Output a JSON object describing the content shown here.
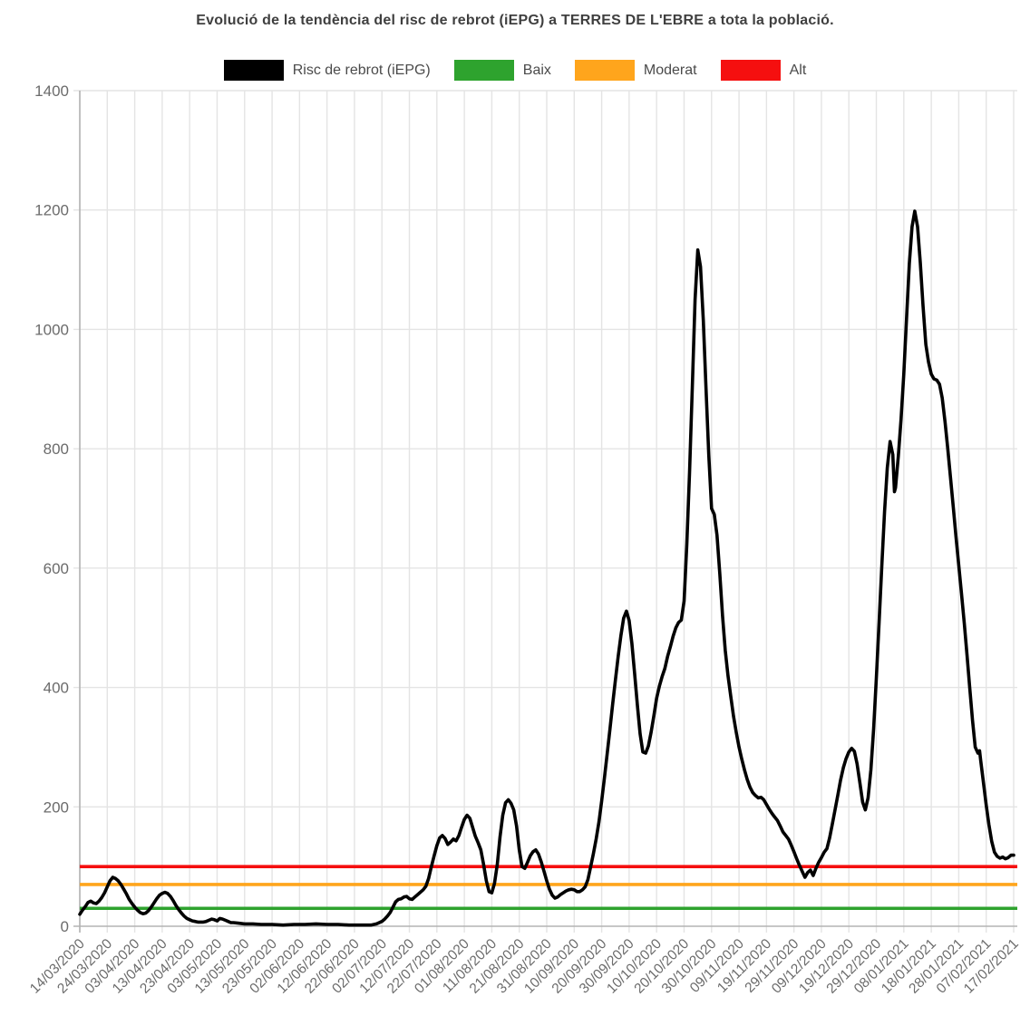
{
  "chart_data": {
    "type": "line",
    "title": "Evolució de la tendència del risc de rebrot (iEPG) a TERRES DE L'EBRE a tota la població.",
    "legend": [
      {
        "label": "Risc de rebrot (iEPG)",
        "color": "#000000"
      },
      {
        "label": "Baix",
        "color": "#2ea32e"
      },
      {
        "label": "Moderat",
        "color": "#ffa51c"
      },
      {
        "label": "Alt",
        "color": "#f50f0f"
      }
    ],
    "colors": {
      "series": "#000000",
      "grid": "#e4e4e4",
      "axis": "#b3b3b3",
      "tick_text": "#6b6b6b"
    },
    "y_axis": {
      "min": 0,
      "max": 1400,
      "ticks": [
        0,
        200,
        400,
        600,
        800,
        1000,
        1200,
        1400
      ],
      "grid": true
    },
    "x_axis": {
      "tick_interval_days": 10,
      "tick_labels": [
        "14/03/2020",
        "24/03/2020",
        "03/04/2020",
        "13/04/2020",
        "23/04/2020",
        "03/05/2020",
        "13/05/2020",
        "23/05/2020",
        "02/06/2020",
        "12/06/2020",
        "22/06/2020",
        "02/07/2020",
        "12/07/2020",
        "22/07/2020",
        "01/08/2020",
        "11/08/2020",
        "21/08/2020",
        "31/08/2020",
        "10/09/2020",
        "20/09/2020",
        "30/09/2020",
        "10/10/2020",
        "20/10/2020",
        "30/10/2020",
        "09/11/2020",
        "19/11/2020",
        "29/11/2020",
        "09/12/2020",
        "19/12/2020",
        "29/12/2020",
        "08/01/2021",
        "18/01/2021",
        "28/01/2021",
        "07/02/2021",
        "17/02/2021"
      ],
      "grid": true
    },
    "thresholds": [
      {
        "name": "Baix",
        "value": 30,
        "color": "#2ea32e"
      },
      {
        "name": "Moderat",
        "value": 70,
        "color": "#ffa51c"
      },
      {
        "name": "Alt",
        "value": 100,
        "color": "#f50f0f"
      }
    ],
    "series": [
      {
        "name": "Risc de rebrot (iEPG)",
        "color": "#000000",
        "x_unit": "days_since_first_tick",
        "points": [
          [
            0,
            20
          ],
          [
            1,
            27
          ],
          [
            2,
            33
          ],
          [
            3,
            40
          ],
          [
            4,
            42
          ],
          [
            5,
            39
          ],
          [
            6,
            38
          ],
          [
            7,
            42
          ],
          [
            8,
            48
          ],
          [
            9,
            56
          ],
          [
            10,
            66
          ],
          [
            11,
            76
          ],
          [
            12,
            82
          ],
          [
            13,
            80
          ],
          [
            14,
            76
          ],
          [
            15,
            70
          ],
          [
            16,
            62
          ],
          [
            17,
            54
          ],
          [
            18,
            45
          ],
          [
            19,
            38
          ],
          [
            20,
            32
          ],
          [
            21,
            27
          ],
          [
            22,
            23
          ],
          [
            23,
            21
          ],
          [
            24,
            22
          ],
          [
            25,
            26
          ],
          [
            26,
            32
          ],
          [
            27,
            39
          ],
          [
            28,
            46
          ],
          [
            29,
            52
          ],
          [
            30,
            55
          ],
          [
            31,
            57
          ],
          [
            32,
            55
          ],
          [
            33,
            50
          ],
          [
            34,
            43
          ],
          [
            35,
            35
          ],
          [
            36,
            28
          ],
          [
            37,
            22
          ],
          [
            38,
            17
          ],
          [
            39,
            13
          ],
          [
            40,
            11
          ],
          [
            41,
            9
          ],
          [
            42,
            8
          ],
          [
            43,
            7
          ],
          [
            44,
            7
          ],
          [
            45,
            7
          ],
          [
            46,
            8
          ],
          [
            47,
            10
          ],
          [
            48,
            12
          ],
          [
            49,
            11
          ],
          [
            50,
            9
          ],
          [
            51,
            13
          ],
          [
            52,
            12
          ],
          [
            53,
            10
          ],
          [
            54,
            8
          ],
          [
            55,
            6
          ],
          [
            56,
            6
          ],
          [
            58,
            5
          ],
          [
            60,
            4
          ],
          [
            63,
            4
          ],
          [
            66,
            3
          ],
          [
            70,
            3
          ],
          [
            74,
            2
          ],
          [
            78,
            3
          ],
          [
            82,
            3
          ],
          [
            86,
            4
          ],
          [
            90,
            3
          ],
          [
            94,
            3
          ],
          [
            98,
            2
          ],
          [
            101,
            2
          ],
          [
            104,
            2
          ],
          [
            106,
            2
          ],
          [
            108,
            4
          ],
          [
            110,
            8
          ],
          [
            111,
            12
          ],
          [
            112,
            17
          ],
          [
            113,
            23
          ],
          [
            114,
            32
          ],
          [
            115,
            41
          ],
          [
            116,
            45
          ],
          [
            117,
            46
          ],
          [
            118,
            49
          ],
          [
            119,
            50
          ],
          [
            120,
            46
          ],
          [
            121,
            45
          ],
          [
            122,
            49
          ],
          [
            123,
            53
          ],
          [
            124,
            57
          ],
          [
            125,
            61
          ],
          [
            126,
            67
          ],
          [
            127,
            80
          ],
          [
            128,
            100
          ],
          [
            129,
            118
          ],
          [
            130,
            135
          ],
          [
            131,
            148
          ],
          [
            132,
            152
          ],
          [
            133,
            147
          ],
          [
            134,
            137
          ],
          [
            135,
            141
          ],
          [
            136,
            146
          ],
          [
            137,
            143
          ],
          [
            138,
            152
          ],
          [
            139,
            166
          ],
          [
            140,
            179
          ],
          [
            141,
            186
          ],
          [
            142,
            181
          ],
          [
            143,
            166
          ],
          [
            144,
            151
          ],
          [
            145,
            140
          ],
          [
            146,
            128
          ],
          [
            147,
            104
          ],
          [
            148,
            76
          ],
          [
            149,
            58
          ],
          [
            150,
            56
          ],
          [
            151,
            72
          ],
          [
            152,
            104
          ],
          [
            153,
            150
          ],
          [
            154,
            186
          ],
          [
            155,
            207
          ],
          [
            156,
            212
          ],
          [
            157,
            206
          ],
          [
            158,
            195
          ],
          [
            159,
            168
          ],
          [
            160,
            128
          ],
          [
            161,
            100
          ],
          [
            162,
            97
          ],
          [
            163,
            107
          ],
          [
            164,
            118
          ],
          [
            165,
            125
          ],
          [
            166,
            128
          ],
          [
            167,
            121
          ],
          [
            168,
            108
          ],
          [
            169,
            92
          ],
          [
            170,
            76
          ],
          [
            171,
            62
          ],
          [
            172,
            52
          ],
          [
            173,
            47
          ],
          [
            174,
            49
          ],
          [
            175,
            53
          ],
          [
            176,
            56
          ],
          [
            177,
            59
          ],
          [
            178,
            61
          ],
          [
            179,
            62
          ],
          [
            180,
            61
          ],
          [
            181,
            58
          ],
          [
            182,
            58
          ],
          [
            183,
            61
          ],
          [
            184,
            66
          ],
          [
            185,
            78
          ],
          [
            186,
            100
          ],
          [
            187,
            122
          ],
          [
            188,
            146
          ],
          [
            189,
            175
          ],
          [
            190,
            210
          ],
          [
            191,
            248
          ],
          [
            192,
            288
          ],
          [
            193,
            330
          ],
          [
            194,
            372
          ],
          [
            195,
            412
          ],
          [
            196,
            452
          ],
          [
            197,
            487
          ],
          [
            198,
            516
          ],
          [
            199,
            528
          ],
          [
            200,
            512
          ],
          [
            201,
            474
          ],
          [
            202,
            424
          ],
          [
            203,
            370
          ],
          [
            204,
            322
          ],
          [
            205,
            292
          ],
          [
            206,
            290
          ],
          [
            207,
            302
          ],
          [
            208,
            325
          ],
          [
            209,
            352
          ],
          [
            210,
            382
          ],
          [
            211,
            402
          ],
          [
            212,
            418
          ],
          [
            213,
            432
          ],
          [
            214,
            452
          ],
          [
            215,
            468
          ],
          [
            216,
            486
          ],
          [
            217,
            500
          ],
          [
            218,
            509
          ],
          [
            219,
            513
          ],
          [
            220,
            545
          ],
          [
            221,
            640
          ],
          [
            222,
            760
          ],
          [
            223,
            905
          ],
          [
            224,
            1050
          ],
          [
            225,
            1133
          ],
          [
            226,
            1105
          ],
          [
            227,
            1015
          ],
          [
            228,
            900
          ],
          [
            229,
            790
          ],
          [
            230,
            700
          ],
          [
            231,
            690
          ],
          [
            232,
            655
          ],
          [
            233,
            590
          ],
          [
            234,
            520
          ],
          [
            235,
            462
          ],
          [
            236,
            420
          ],
          [
            237,
            385
          ],
          [
            238,
            352
          ],
          [
            239,
            325
          ],
          [
            240,
            300
          ],
          [
            241,
            280
          ],
          [
            242,
            262
          ],
          [
            243,
            246
          ],
          [
            244,
            233
          ],
          [
            245,
            224
          ],
          [
            246,
            219
          ],
          [
            247,
            215
          ],
          [
            248,
            216
          ],
          [
            249,
            212
          ],
          [
            250,
            204
          ],
          [
            251,
            196
          ],
          [
            252,
            189
          ],
          [
            253,
            183
          ],
          [
            254,
            177
          ],
          [
            255,
            168
          ],
          [
            256,
            158
          ],
          [
            257,
            152
          ],
          [
            258,
            146
          ],
          [
            259,
            136
          ],
          [
            260,
            125
          ],
          [
            261,
            113
          ],
          [
            262,
            102
          ],
          [
            263,
            92
          ],
          [
            264,
            82
          ],
          [
            265,
            90
          ],
          [
            266,
            94
          ],
          [
            267,
            85
          ],
          [
            268,
            97
          ],
          [
            269,
            107
          ],
          [
            270,
            115
          ],
          [
            271,
            124
          ],
          [
            272,
            130
          ],
          [
            273,
            148
          ],
          [
            274,
            172
          ],
          [
            275,
            196
          ],
          [
            276,
            220
          ],
          [
            277,
            245
          ],
          [
            278,
            266
          ],
          [
            279,
            281
          ],
          [
            280,
            292
          ],
          [
            281,
            298
          ],
          [
            282,
            293
          ],
          [
            283,
            272
          ],
          [
            284,
            240
          ],
          [
            285,
            208
          ],
          [
            286,
            195
          ],
          [
            287,
            215
          ],
          [
            288,
            262
          ],
          [
            289,
            330
          ],
          [
            290,
            415
          ],
          [
            291,
            510
          ],
          [
            292,
            605
          ],
          [
            293,
            695
          ],
          [
            294,
            768
          ],
          [
            295,
            812
          ],
          [
            296,
            790
          ],
          [
            296.6,
            728
          ],
          [
            297,
            735
          ],
          [
            298,
            788
          ],
          [
            299,
            850
          ],
          [
            300,
            925
          ],
          [
            301,
            1020
          ],
          [
            302,
            1110
          ],
          [
            303,
            1172
          ],
          [
            304,
            1198
          ],
          [
            305,
            1172
          ],
          [
            306,
            1112
          ],
          [
            307,
            1040
          ],
          [
            308,
            975
          ],
          [
            309,
            945
          ],
          [
            310,
            925
          ],
          [
            311,
            917
          ],
          [
            312,
            915
          ],
          [
            313,
            908
          ],
          [
            314,
            885
          ],
          [
            315,
            845
          ],
          [
            316,
            800
          ],
          [
            317,
            752
          ],
          [
            318,
            702
          ],
          [
            319,
            652
          ],
          [
            320,
            605
          ],
          [
            321,
            558
          ],
          [
            322,
            508
          ],
          [
            323,
            455
          ],
          [
            324,
            400
          ],
          [
            325,
            345
          ],
          [
            326,
            300
          ],
          [
            327,
            290
          ],
          [
            327.6,
            294
          ],
          [
            328,
            278
          ],
          [
            329,
            240
          ],
          [
            330,
            203
          ],
          [
            331,
            170
          ],
          [
            332,
            142
          ],
          [
            333,
            124
          ],
          [
            334,
            117
          ],
          [
            335,
            114
          ],
          [
            336,
            116
          ],
          [
            337,
            113
          ],
          [
            338,
            115
          ],
          [
            339,
            119
          ],
          [
            340,
            119
          ]
        ]
      }
    ]
  }
}
